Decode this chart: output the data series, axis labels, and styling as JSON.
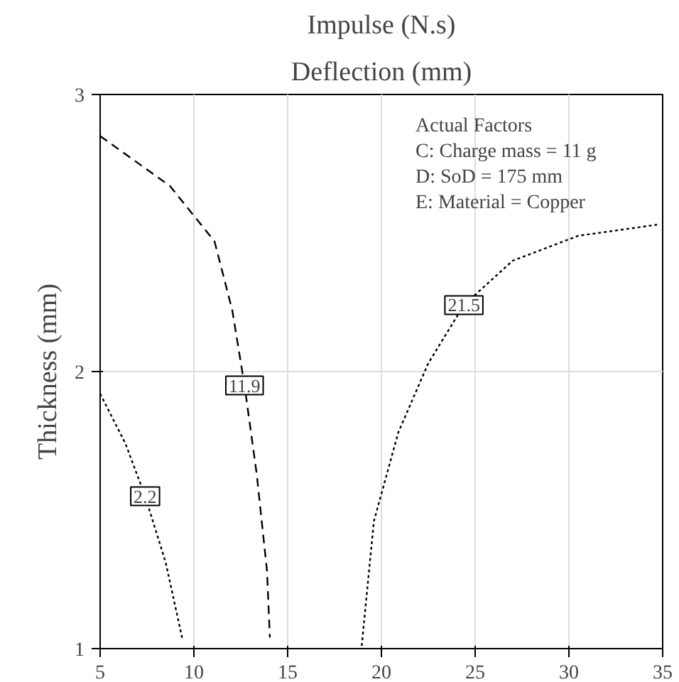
{
  "chart_data": {
    "type": "line",
    "title": "Impulse (N.s)",
    "subtitle": "Deflection (mm)",
    "ylabel": "Thickness (mm)",
    "xlim": [
      5,
      35
    ],
    "ylim": [
      1,
      3
    ],
    "xticks": [
      5,
      10,
      15,
      20,
      25,
      30,
      35
    ],
    "yticks": [
      1,
      2,
      3
    ],
    "grid": true,
    "marker": "none",
    "annotations": [
      "Actual Factors",
      "C: Charge mass = 11 g",
      "D: SoD = 175 mm",
      "E: Material = Copper"
    ],
    "series": [
      {
        "name": "2.2",
        "color": "#000000",
        "line_style": "dotted",
        "x": [
          5,
          6.35,
          7.4,
          8.5,
          9.4
        ],
        "values": [
          1.92,
          1.74,
          1.55,
          1.31,
          1.03
        ]
      },
      {
        "name": "11.9",
        "color": "#000000",
        "line_style": "dashed",
        "x": [
          5,
          8.72,
          11.1,
          12.05,
          12.7,
          13.35,
          13.9,
          14.05
        ],
        "values": [
          2.85,
          2.67,
          2.47,
          2.22,
          1.95,
          1.63,
          1.28,
          1.04
        ]
      },
      {
        "name": "21.5",
        "color": "#000000",
        "line_style": "dotted",
        "x": [
          18.95,
          19.6,
          20.9,
          22.5,
          24.4,
          27.0,
          30.5,
          34.7
        ],
        "values": [
          1.01,
          1.46,
          1.78,
          2.03,
          2.24,
          2.4,
          2.49,
          2.53
        ]
      }
    ]
  }
}
